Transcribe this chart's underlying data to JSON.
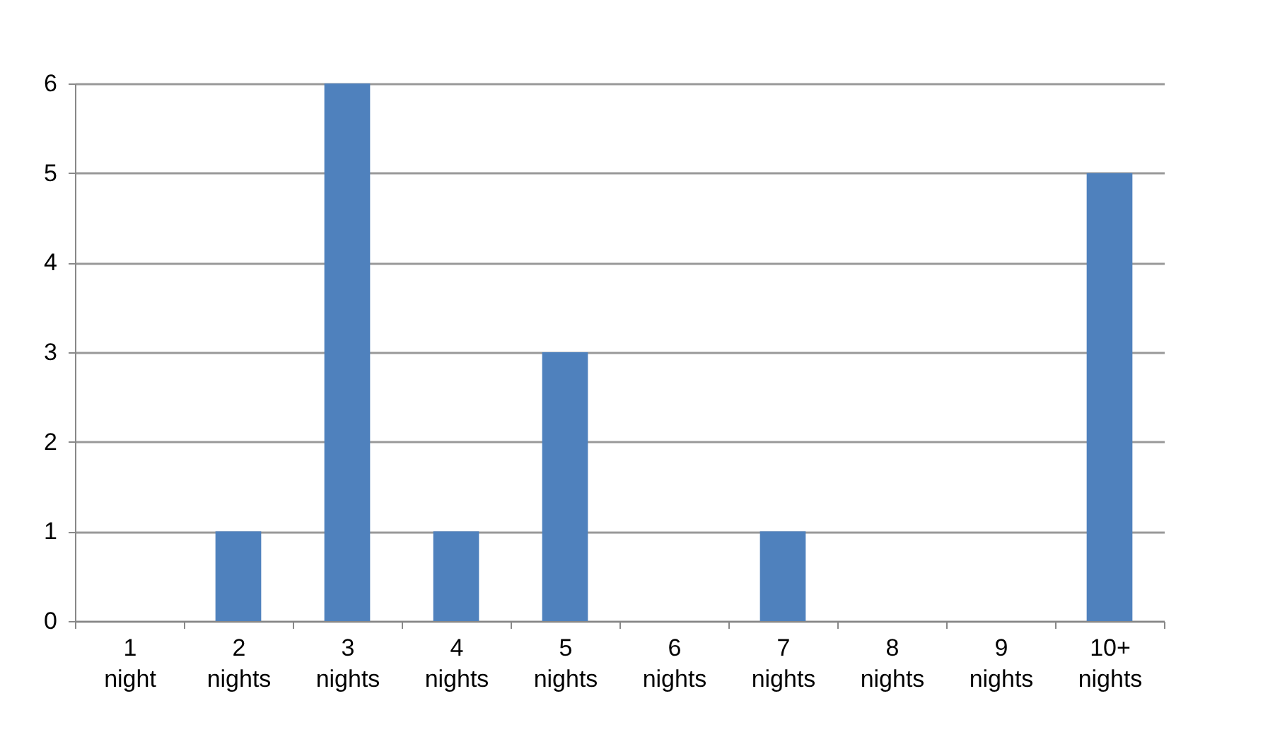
{
  "chart_data": {
    "type": "bar",
    "categories": [
      "1 night",
      "2 nights",
      "3 nights",
      "4 nights",
      "5 nights",
      "6 nights",
      "7 nights",
      "8 nights",
      "9 nights",
      "10+ nights"
    ],
    "values": [
      0,
      1,
      6,
      1,
      3,
      0,
      1,
      0,
      0,
      5
    ],
    "color": "#4f81bd",
    "ylim": [
      0,
      6
    ],
    "yticks": [
      0,
      1,
      2,
      3,
      4,
      5,
      6
    ],
    "grid": "y"
  }
}
